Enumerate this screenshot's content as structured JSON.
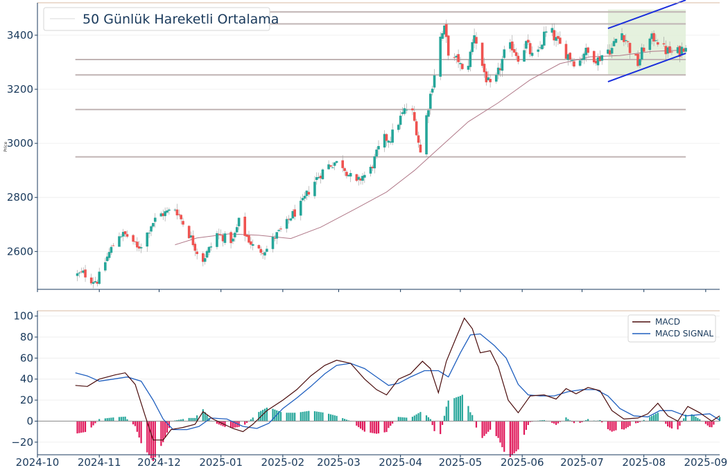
{
  "chart_data": [
    {
      "type": "candlestick",
      "ylabel": "Price",
      "ylim": [
        2460,
        3520
      ],
      "yticks": [
        2600,
        2800,
        3000,
        3200,
        3400
      ],
      "ytick_labels": [
        "2600",
        "2800",
        "3000",
        "3200",
        "3400"
      ],
      "legend": {
        "position": "top-left",
        "entries": [
          {
            "name": "50 Günlük Hareketli Ortalama",
            "color": "#e0e0e0"
          }
        ]
      },
      "up_color": "#26a69a",
      "down_color": "#ef5350",
      "ma_color": "#b07888",
      "levels_color": "#c0b4b4",
      "channel_color": "#1a2edc",
      "channel_fill": "#e0efd8",
      "horizontal_levels": [
        {
          "value": 3486,
          "x_start": "2024-10-20",
          "x_end": "2025-08-22"
        },
        {
          "value": 3442,
          "x_start": "2024-10-20",
          "x_end": "2025-08-22"
        },
        {
          "value": 3310,
          "x_start": "2024-10-20",
          "x_end": "2025-08-22"
        },
        {
          "value": 3253,
          "x_start": "2024-10-20",
          "x_end": "2025-08-22"
        },
        {
          "value": 3125,
          "x_start": "2024-10-20",
          "x_end": "2025-08-22"
        },
        {
          "value": 2950,
          "x_start": "2024-10-20",
          "x_end": "2025-08-22"
        }
      ],
      "channel": {
        "upper": [
          {
            "x": "2025-07-14",
            "y": 3425
          },
          {
            "x": "2025-08-22",
            "y": 3530
          }
        ],
        "lower": [
          {
            "x": "2025-07-14",
            "y": 3228
          },
          {
            "x": "2025-08-22",
            "y": 3333
          }
        ],
        "shaded_box": {
          "x_start": "2025-07-14",
          "x_end": "2025-08-22",
          "y_low": 3253,
          "y_high": 3495
        }
      },
      "price_anchors": [
        {
          "x": "2024-10-20",
          "y": 2512
        },
        {
          "x": "2024-10-24",
          "y": 2520
        },
        {
          "x": "2024-10-28",
          "y": 2495
        },
        {
          "x": "2024-10-31",
          "y": 2492
        },
        {
          "x": "2024-11-05",
          "y": 2580
        },
        {
          "x": "2024-11-08",
          "y": 2625
        },
        {
          "x": "2024-11-11",
          "y": 2665
        },
        {
          "x": "2024-11-14",
          "y": 2660
        },
        {
          "x": "2024-11-17",
          "y": 2650
        },
        {
          "x": "2024-11-20",
          "y": 2610
        },
        {
          "x": "2024-11-23",
          "y": 2635
        },
        {
          "x": "2024-11-27",
          "y": 2700
        },
        {
          "x": "2024-12-01",
          "y": 2735
        },
        {
          "x": "2024-12-05",
          "y": 2745
        },
        {
          "x": "2024-12-09",
          "y": 2760
        },
        {
          "x": "2024-12-11",
          "y": 2735
        },
        {
          "x": "2024-12-14",
          "y": 2690
        },
        {
          "x": "2024-12-17",
          "y": 2650
        },
        {
          "x": "2024-12-20",
          "y": 2600
        },
        {
          "x": "2024-12-23",
          "y": 2570
        },
        {
          "x": "2024-12-27",
          "y": 2620
        },
        {
          "x": "2024-12-30",
          "y": 2665
        },
        {
          "x": "2025-01-03",
          "y": 2650
        },
        {
          "x": "2025-01-07",
          "y": 2640
        },
        {
          "x": "2025-01-10",
          "y": 2710
        },
        {
          "x": "2025-01-13",
          "y": 2665
        },
        {
          "x": "2025-01-17",
          "y": 2620
        },
        {
          "x": "2025-01-20",
          "y": 2602
        },
        {
          "x": "2025-01-24",
          "y": 2610
        },
        {
          "x": "2025-01-28",
          "y": 2655
        },
        {
          "x": "2025-02-02",
          "y": 2690
        },
        {
          "x": "2025-02-05",
          "y": 2730
        },
        {
          "x": "2025-02-08",
          "y": 2750
        },
        {
          "x": "2025-02-11",
          "y": 2780
        },
        {
          "x": "2025-02-15",
          "y": 2840
        },
        {
          "x": "2025-02-19",
          "y": 2880
        },
        {
          "x": "2025-02-23",
          "y": 2915
        },
        {
          "x": "2025-02-27",
          "y": 2930
        },
        {
          "x": "2025-03-03",
          "y": 2920
        },
        {
          "x": "2025-03-07",
          "y": 2875
        },
        {
          "x": "2025-03-10",
          "y": 2850
        },
        {
          "x": "2025-03-13",
          "y": 2880
        },
        {
          "x": "2025-03-16",
          "y": 2885
        },
        {
          "x": "2025-03-19",
          "y": 2940
        },
        {
          "x": "2025-03-23",
          "y": 3015
        },
        {
          "x": "2025-03-27",
          "y": 3020
        },
        {
          "x": "2025-03-31",
          "y": 3080
        },
        {
          "x": "2025-04-03",
          "y": 3120
        },
        {
          "x": "2025-04-06",
          "y": 3140
        },
        {
          "x": "2025-04-09",
          "y": 3050
        },
        {
          "x": "2025-04-11",
          "y": 2965
        },
        {
          "x": "2025-04-13",
          "y": 3060
        },
        {
          "x": "2025-04-15",
          "y": 3140
        },
        {
          "x": "2025-04-17",
          "y": 3220
        },
        {
          "x": "2025-04-19",
          "y": 3300
        },
        {
          "x": "2025-04-21",
          "y": 3390
        },
        {
          "x": "2025-04-23",
          "y": 3420
        },
        {
          "x": "2025-04-25",
          "y": 3340
        },
        {
          "x": "2025-04-27",
          "y": 3300
        },
        {
          "x": "2025-04-30",
          "y": 3310
        },
        {
          "x": "2025-05-03",
          "y": 3240
        },
        {
          "x": "2025-05-06",
          "y": 3330
        },
        {
          "x": "2025-05-08",
          "y": 3410
        },
        {
          "x": "2025-05-11",
          "y": 3310
        },
        {
          "x": "2025-05-14",
          "y": 3240
        },
        {
          "x": "2025-05-17",
          "y": 3190
        },
        {
          "x": "2025-05-20",
          "y": 3260
        },
        {
          "x": "2025-05-23",
          "y": 3330
        },
        {
          "x": "2025-05-27",
          "y": 3360
        },
        {
          "x": "2025-05-30",
          "y": 3320
        },
        {
          "x": "2025-06-03",
          "y": 3370
        },
        {
          "x": "2025-06-06",
          "y": 3320
        },
        {
          "x": "2025-06-09",
          "y": 3330
        },
        {
          "x": "2025-06-12",
          "y": 3400
        },
        {
          "x": "2025-06-15",
          "y": 3420
        },
        {
          "x": "2025-06-18",
          "y": 3380
        },
        {
          "x": "2025-06-21",
          "y": 3350
        },
        {
          "x": "2025-06-25",
          "y": 3320
        },
        {
          "x": "2025-06-29",
          "y": 3290
        },
        {
          "x": "2025-07-02",
          "y": 3340
        },
        {
          "x": "2025-07-05",
          "y": 3330
        },
        {
          "x": "2025-07-09",
          "y": 3310
        },
        {
          "x": "2025-07-13",
          "y": 3345
        },
        {
          "x": "2025-07-16",
          "y": 3350
        },
        {
          "x": "2025-07-20",
          "y": 3420
        },
        {
          "x": "2025-07-23",
          "y": 3385
        },
        {
          "x": "2025-07-26",
          "y": 3330
        },
        {
          "x": "2025-07-29",
          "y": 3295
        },
        {
          "x": "2025-08-01",
          "y": 3355
        },
        {
          "x": "2025-08-04",
          "y": 3380
        },
        {
          "x": "2025-08-07",
          "y": 3395
        },
        {
          "x": "2025-08-10",
          "y": 3350
        },
        {
          "x": "2025-08-13",
          "y": 3340
        },
        {
          "x": "2025-08-16",
          "y": 3330
        },
        {
          "x": "2025-08-19",
          "y": 3340
        },
        {
          "x": "2025-08-22",
          "y": 3370
        }
      ],
      "moving_average": [
        {
          "x": "2024-12-09",
          "y": 2625
        },
        {
          "x": "2024-12-20",
          "y": 2650
        },
        {
          "x": "2025-01-05",
          "y": 2665
        },
        {
          "x": "2025-01-20",
          "y": 2660
        },
        {
          "x": "2025-02-05",
          "y": 2648
        },
        {
          "x": "2025-02-20",
          "y": 2690
        },
        {
          "x": "2025-03-10",
          "y": 2760
        },
        {
          "x": "2025-03-25",
          "y": 2820
        },
        {
          "x": "2025-04-08",
          "y": 2900
        },
        {
          "x": "2025-04-20",
          "y": 2980
        },
        {
          "x": "2025-05-05",
          "y": 3080
        },
        {
          "x": "2025-05-20",
          "y": 3150
        },
        {
          "x": "2025-06-05",
          "y": 3235
        },
        {
          "x": "2025-06-20",
          "y": 3295
        },
        {
          "x": "2025-07-05",
          "y": 3320
        },
        {
          "x": "2025-07-20",
          "y": 3325
        },
        {
          "x": "2025-08-05",
          "y": 3340
        },
        {
          "x": "2025-08-22",
          "y": 3345
        }
      ]
    },
    {
      "type": "line+bar",
      "ylim": [
        -32,
        105
      ],
      "yticks": [
        -20,
        0,
        20,
        40,
        60,
        80,
        100
      ],
      "ytick_labels": [
        "−20",
        "0",
        "20",
        "40",
        "60",
        "80",
        "100"
      ],
      "legend": {
        "position": "top-right",
        "entries": [
          {
            "name": "MACD",
            "color": "#4a0c0c"
          },
          {
            "name": "MACD SIGNAL",
            "color": "#1f5fbf"
          }
        ]
      },
      "hist_pos_color": "#26a69a",
      "hist_neg_color": "#e0185a",
      "zero_line_color": "#888888",
      "macd": [
        {
          "x": "2024-10-20",
          "y": 34
        },
        {
          "x": "2024-10-26",
          "y": 33
        },
        {
          "x": "2024-11-01",
          "y": 40
        },
        {
          "x": "2024-11-09",
          "y": 44
        },
        {
          "x": "2024-11-14",
          "y": 46
        },
        {
          "x": "2024-11-19",
          "y": 35
        },
        {
          "x": "2024-11-24",
          "y": 5
        },
        {
          "x": "2024-11-28",
          "y": -18
        },
        {
          "x": "2024-12-03",
          "y": -18
        },
        {
          "x": "2024-12-07",
          "y": -8
        },
        {
          "x": "2024-12-13",
          "y": -6
        },
        {
          "x": "2024-12-19",
          "y": -3
        },
        {
          "x": "2024-12-23",
          "y": 9
        },
        {
          "x": "2024-12-28",
          "y": 2
        },
        {
          "x": "2025-01-07",
          "y": -7
        },
        {
          "x": "2025-01-12",
          "y": -10
        },
        {
          "x": "2025-01-17",
          "y": -3
        },
        {
          "x": "2025-01-24",
          "y": 10
        },
        {
          "x": "2025-02-01",
          "y": 20
        },
        {
          "x": "2025-02-08",
          "y": 30
        },
        {
          "x": "2025-02-15",
          "y": 43
        },
        {
          "x": "2025-02-22",
          "y": 53
        },
        {
          "x": "2025-02-28",
          "y": 58
        },
        {
          "x": "2025-03-07",
          "y": 55
        },
        {
          "x": "2025-03-14",
          "y": 40
        },
        {
          "x": "2025-03-20",
          "y": 30
        },
        {
          "x": "2025-03-25",
          "y": 25
        },
        {
          "x": "2025-03-31",
          "y": 40
        },
        {
          "x": "2025-04-06",
          "y": 45
        },
        {
          "x": "2025-04-12",
          "y": 57
        },
        {
          "x": "2025-04-16",
          "y": 50
        },
        {
          "x": "2025-04-20",
          "y": 27
        },
        {
          "x": "2025-04-24",
          "y": 57
        },
        {
          "x": "2025-04-29",
          "y": 80
        },
        {
          "x": "2025-05-03",
          "y": 98
        },
        {
          "x": "2025-05-07",
          "y": 88
        },
        {
          "x": "2025-05-11",
          "y": 65
        },
        {
          "x": "2025-05-16",
          "y": 67
        },
        {
          "x": "2025-05-20",
          "y": 52
        },
        {
          "x": "2025-05-25",
          "y": 20
        },
        {
          "x": "2025-05-30",
          "y": 8
        },
        {
          "x": "2025-06-05",
          "y": 24
        },
        {
          "x": "2025-06-12",
          "y": 25
        },
        {
          "x": "2025-06-18",
          "y": 21
        },
        {
          "x": "2025-06-23",
          "y": 31
        },
        {
          "x": "2025-06-28",
          "y": 26
        },
        {
          "x": "2025-07-04",
          "y": 32
        },
        {
          "x": "2025-07-10",
          "y": 29
        },
        {
          "x": "2025-07-16",
          "y": 10
        },
        {
          "x": "2025-07-22",
          "y": 2
        },
        {
          "x": "2025-07-29",
          "y": 3
        },
        {
          "x": "2025-08-03",
          "y": 7
        },
        {
          "x": "2025-08-08",
          "y": 17
        },
        {
          "x": "2025-08-13",
          "y": 5
        },
        {
          "x": "2025-08-18",
          "y": 0
        },
        {
          "x": "2025-08-23",
          "y": 14
        },
        {
          "x": "2025-08-29",
          "y": 8
        },
        {
          "x": "2025-09-04",
          "y": 0
        },
        {
          "x": "2025-09-08",
          "y": 5
        }
      ],
      "signal": [
        {
          "x": "2024-10-20",
          "y": 46
        },
        {
          "x": "2024-10-26",
          "y": 43
        },
        {
          "x": "2024-11-01",
          "y": 38
        },
        {
          "x": "2024-11-08",
          "y": 40
        },
        {
          "x": "2024-11-15",
          "y": 42
        },
        {
          "x": "2024-11-22",
          "y": 38
        },
        {
          "x": "2024-11-28",
          "y": 20
        },
        {
          "x": "2024-12-03",
          "y": 2
        },
        {
          "x": "2024-12-08",
          "y": -8
        },
        {
          "x": "2024-12-15",
          "y": -8
        },
        {
          "x": "2024-12-21",
          "y": -5
        },
        {
          "x": "2024-12-27",
          "y": 3
        },
        {
          "x": "2025-01-04",
          "y": 2
        },
        {
          "x": "2025-01-12",
          "y": -5
        },
        {
          "x": "2025-01-19",
          "y": -7
        },
        {
          "x": "2025-01-25",
          "y": -2
        },
        {
          "x": "2025-02-01",
          "y": 12
        },
        {
          "x": "2025-02-08",
          "y": 22
        },
        {
          "x": "2025-02-15",
          "y": 33
        },
        {
          "x": "2025-02-22",
          "y": 45
        },
        {
          "x": "2025-02-28",
          "y": 53
        },
        {
          "x": "2025-03-07",
          "y": 55
        },
        {
          "x": "2025-03-14",
          "y": 50
        },
        {
          "x": "2025-03-20",
          "y": 42
        },
        {
          "x": "2025-03-26",
          "y": 34
        },
        {
          "x": "2025-03-31",
          "y": 36
        },
        {
          "x": "2025-04-06",
          "y": 42
        },
        {
          "x": "2025-04-13",
          "y": 48
        },
        {
          "x": "2025-04-20",
          "y": 48
        },
        {
          "x": "2025-04-25",
          "y": 42
        },
        {
          "x": "2025-05-01",
          "y": 65
        },
        {
          "x": "2025-05-06",
          "y": 82
        },
        {
          "x": "2025-05-11",
          "y": 83
        },
        {
          "x": "2025-05-18",
          "y": 72
        },
        {
          "x": "2025-05-24",
          "y": 60
        },
        {
          "x": "2025-05-30",
          "y": 35
        },
        {
          "x": "2025-06-04",
          "y": 25
        },
        {
          "x": "2025-06-10",
          "y": 24
        },
        {
          "x": "2025-06-17",
          "y": 24
        },
        {
          "x": "2025-06-24",
          "y": 28
        },
        {
          "x": "2025-07-01",
          "y": 30
        },
        {
          "x": "2025-07-08",
          "y": 30
        },
        {
          "x": "2025-07-14",
          "y": 24
        },
        {
          "x": "2025-07-20",
          "y": 12
        },
        {
          "x": "2025-07-27",
          "y": 5
        },
        {
          "x": "2025-08-03",
          "y": 4
        },
        {
          "x": "2025-08-09",
          "y": 10
        },
        {
          "x": "2025-08-15",
          "y": 10
        },
        {
          "x": "2025-08-22",
          "y": 5
        },
        {
          "x": "2025-08-28",
          "y": 6
        },
        {
          "x": "2025-09-03",
          "y": 7
        },
        {
          "x": "2025-09-08",
          "y": 1
        }
      ]
    }
  ],
  "x_axis": {
    "start": "2024-10-01",
    "end": "2025-09-08",
    "ticks": [
      "2024-10-01",
      "2024-11-01",
      "2024-12-01",
      "2025-01-01",
      "2025-02-01",
      "2025-03-01",
      "2025-04-01",
      "2025-05-01",
      "2025-06-01",
      "2025-07-01",
      "2025-08-01",
      "2025-09-01"
    ],
    "tick_labels": [
      "2024-10",
      "2024-11",
      "2024-12",
      "2025-01",
      "2025-02",
      "2025-03",
      "2025-04",
      "2025-05",
      "2025-06",
      "2025-07",
      "2025-08",
      "2025-09"
    ]
  }
}
